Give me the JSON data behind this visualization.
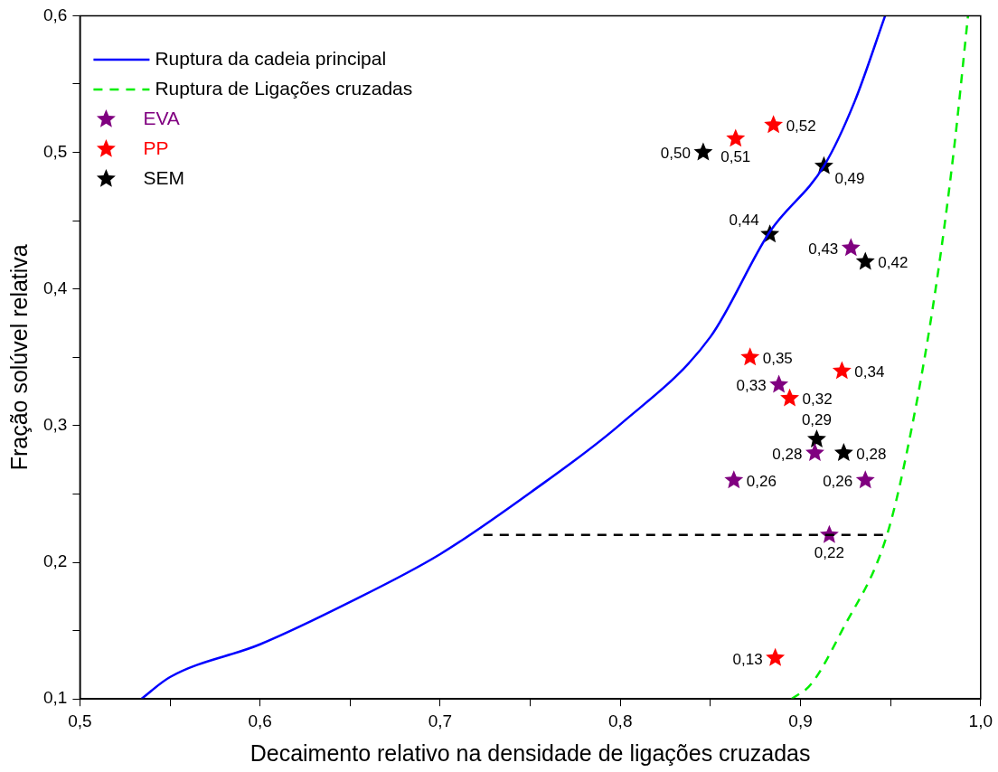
{
  "chart_data": {
    "type": "scatter",
    "xlabel": "Decaimento relativo na densidade de ligações cruzadas",
    "ylabel": "Fração solúvel relativa",
    "xlim": [
      0.5,
      1.0
    ],
    "xticks": [
      {
        "value": 0.5,
        "label": "0,5"
      },
      {
        "value": 0.55,
        "label": null
      },
      {
        "value": 0.6,
        "label": "0,6"
      },
      {
        "value": 0.65,
        "label": null
      },
      {
        "value": 0.7,
        "label": "0,7"
      },
      {
        "value": 0.75,
        "label": null
      },
      {
        "value": 0.8,
        "label": "0,8"
      },
      {
        "value": 0.85,
        "label": null
      },
      {
        "value": 0.9,
        "label": "0,9"
      },
      {
        "value": 0.95,
        "label": null
      },
      {
        "value": 1.0,
        "label": "1,0"
      }
    ],
    "ylim": [
      0.1,
      0.6
    ],
    "yticks": [
      {
        "value": 0.1,
        "label": "0,1"
      },
      {
        "value": 0.15,
        "label": null
      },
      {
        "value": 0.2,
        "label": "0,2"
      },
      {
        "value": 0.25,
        "label": null
      },
      {
        "value": 0.3,
        "label": "0,3"
      },
      {
        "value": 0.35,
        "label": null
      },
      {
        "value": 0.4,
        "label": "0,4"
      },
      {
        "value": 0.45,
        "label": null
      },
      {
        "value": 0.5,
        "label": "0,5"
      },
      {
        "value": 0.55,
        "label": null
      },
      {
        "value": 0.6,
        "label": "0,6"
      }
    ],
    "grid": false,
    "legend": "top left",
    "series": [
      {
        "name": "Ruptura da cadeia principal",
        "type": "line",
        "color": "#0000ff",
        "line_style": "solid",
        "marker": "none",
        "x": [
          0.534,
          0.55,
          0.6,
          0.65,
          0.7,
          0.75,
          0.8,
          0.85,
          0.883,
          0.913,
          0.93,
          0.947
        ],
        "values": [
          0.1,
          0.116,
          0.14,
          0.171,
          0.206,
          0.251,
          0.301,
          0.365,
          0.442,
          0.49,
          0.537,
          0.6
        ]
      },
      {
        "name": "Ruptura de Ligações cruzadas",
        "type": "line",
        "color": "#00ee00",
        "line_style": "dashed",
        "marker": "none",
        "x": [
          0.895,
          0.906,
          0.923,
          0.948,
          0.962,
          0.975,
          0.985,
          0.993
        ],
        "values": [
          0.1,
          0.111,
          0.15,
          0.22,
          0.3,
          0.4,
          0.5,
          0.6
        ]
      },
      {
        "type": "line",
        "color": "#000000",
        "line_style": "dashed",
        "marker": "none",
        "x": [
          0.724,
          0.948
        ],
        "values": [
          0.22,
          0.22
        ]
      },
      {
        "name": "EVA",
        "type": "scatter",
        "color": "#800080",
        "marker": "star",
        "x": [
          0.928,
          0.888,
          0.863,
          0.908,
          0.936,
          0.916
        ],
        "values": [
          0.43,
          0.33,
          0.26,
          0.28,
          0.26,
          0.22
        ],
        "value_labels": [
          "0,43",
          "0,33",
          "0,26",
          "0,28",
          "0,26",
          "0,22"
        ]
      },
      {
        "name": "PP",
        "type": "scatter",
        "color": "#ff0000",
        "marker": "star",
        "x": [
          0.885,
          0.864,
          0.872,
          0.923,
          0.894,
          0.886
        ],
        "values": [
          0.52,
          0.51,
          0.35,
          0.34,
          0.32,
          0.13
        ],
        "value_labels": [
          "0,52",
          "0,51",
          "0,35",
          "0,34",
          "0,32",
          "0,13"
        ]
      },
      {
        "name": "SEM",
        "type": "scatter",
        "color": "#000000",
        "marker": "star",
        "x": [
          0.846,
          0.913,
          0.883,
          0.936,
          0.909,
          0.924
        ],
        "values": [
          0.5,
          0.49,
          0.44,
          0.42,
          0.29,
          0.28
        ],
        "value_labels": [
          "0,50",
          "0,49",
          "0,44",
          "0,42",
          "0,29",
          "0,28"
        ]
      }
    ]
  }
}
